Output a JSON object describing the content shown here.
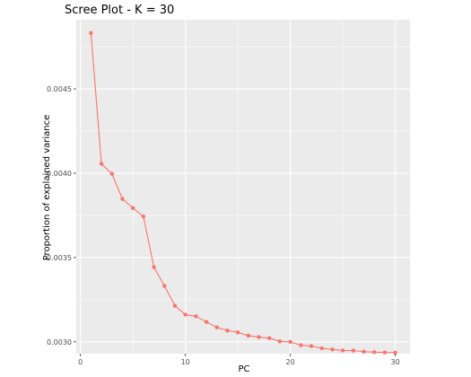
{
  "chart_data": {
    "type": "line",
    "title": "Scree Plot - K = 30",
    "xlabel": "PC",
    "ylabel": "Proportion of explained variance",
    "xlim": [
      -0.4,
      31.4
    ],
    "ylim": [
      0.00293,
      0.00491
    ],
    "xticks": [
      0,
      10,
      20,
      30
    ],
    "xtick_labels": [
      "0",
      "10",
      "20",
      "30"
    ],
    "yticks": [
      0.003,
      0.0035,
      0.004,
      0.0045
    ],
    "ytick_labels": [
      "0.0030",
      "0.0035",
      "0.0040",
      "0.0045"
    ],
    "grid": true,
    "legend": "none",
    "series": [
      {
        "color": "#F8766D",
        "x": [
          1,
          2,
          3,
          4,
          5,
          6,
          7,
          8,
          9,
          10,
          11,
          12,
          13,
          14,
          15,
          16,
          17,
          18,
          19,
          20,
          21,
          22,
          23,
          24,
          25,
          26,
          27,
          28,
          29,
          30
        ],
        "values": [
          0.004831,
          0.004056,
          0.003996,
          0.003848,
          0.003794,
          0.003743,
          0.003443,
          0.003332,
          0.003214,
          0.003161,
          0.003152,
          0.003118,
          0.003086,
          0.003067,
          0.003056,
          0.003037,
          0.003028,
          0.003022,
          0.003003,
          0.003,
          0.00298,
          0.002975,
          0.002962,
          0.002955,
          0.002949,
          0.002948,
          0.002942,
          0.002939,
          0.002937,
          0.002936
        ]
      }
    ]
  },
  "colors": {
    "panel_background": "#EBEBEB",
    "grid_line": "#FFFFFF",
    "series_line": "#F8766D"
  }
}
